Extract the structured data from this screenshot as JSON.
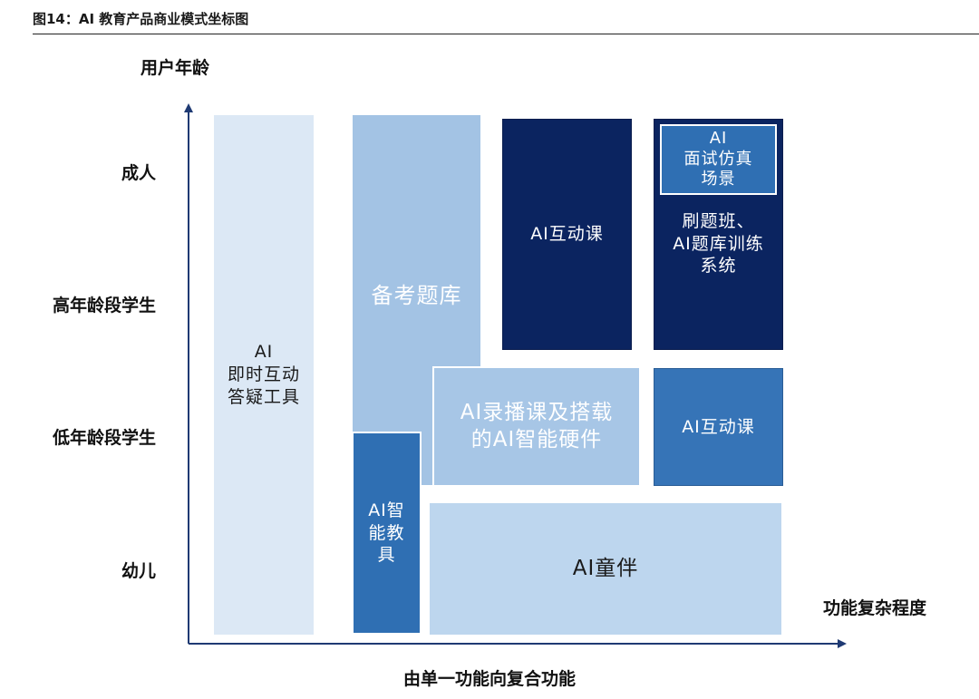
{
  "figure": {
    "title": "图14：AI 教育产品商业模式坐标图"
  },
  "axes": {
    "y_title": "用户年龄",
    "x_title": "功能复杂程度",
    "x_caption": "由单一功能向复合功能",
    "y_ticks": [
      "成人",
      "高年龄段学生",
      "低年龄段学生",
      "幼儿"
    ]
  },
  "boxes": {
    "qa_tool": "AI\n即时互动\n答疑工具",
    "exam_bank": "备考题库",
    "smart_teaching_aid": "AI智\n能教\n具",
    "recorded_course": "AI录播课及搭载\n的AI智能硬件",
    "companion": "AI童伴",
    "interactive_adult": "AI互动课",
    "interview_sim": "AI\n面试仿真\n场景",
    "training_system": "刷题班、\nAI题库训练\n系统",
    "interactive_young": "AI互动课"
  },
  "colors": {
    "pale": "#dce8f5",
    "light_blue": "#a3c3e4",
    "mid_blue": "#2f6fb3",
    "dark_navy": "#0b2460",
    "axis": "#1f3a73"
  }
}
